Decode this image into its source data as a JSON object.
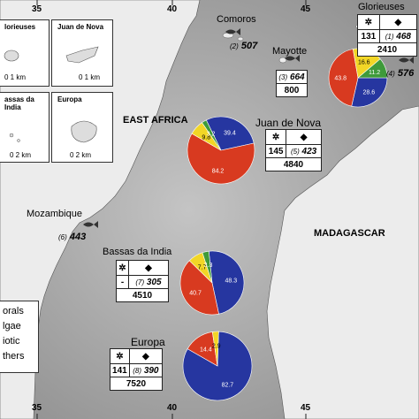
{
  "axis": {
    "top": [
      "35",
      "40",
      "45"
    ],
    "bottom": [
      "35",
      "40",
      "45"
    ]
  },
  "regions": {
    "east_africa": "EAST AFRICA",
    "madagascar": "MADAGASCAR"
  },
  "insets": [
    {
      "title": "lorieuses",
      "scale": "0   1 km"
    },
    {
      "title": "Juan de Nova",
      "scale": "0   1 km"
    },
    {
      "title": "assas da India",
      "scale": "0   2 km"
    },
    {
      "title": "Europa",
      "scale": "0   2 km"
    }
  ],
  "legend": [
    "orals",
    "lgae",
    "iotic",
    "thers"
  ],
  "sites": {
    "comoros": {
      "name": "Comoros",
      "species": "(2)",
      "count": "507"
    },
    "mayotte": {
      "name": "Mayotte",
      "species": "(3)",
      "count": "664",
      "area": "800"
    },
    "glorieuses": {
      "name": "Glorieuses",
      "left": "131",
      "species": "(1)",
      "count": "468",
      "area": "2410",
      "side_species": "(4)",
      "side_count": "576"
    },
    "juan_de_nova": {
      "name": "Juan de Nova",
      "left": "145",
      "species": "(5)",
      "count": "423",
      "area": "4840"
    },
    "mozambique": {
      "name": "Mozambique",
      "species": "(6)",
      "count": "443"
    },
    "bassas": {
      "name": "Bassas da India",
      "left": "-",
      "species": "(7)",
      "count": "305",
      "area": "4510"
    },
    "europa": {
      "name": "Europa",
      "left": "141",
      "species": "(8)",
      "count": "390",
      "area": "7520"
    }
  },
  "colors": {
    "corals": "#2636a0",
    "algae": "#d83a20",
    "abiotic": "#f2d626",
    "others": "#3e9a3a",
    "sea": "#a4a4a4",
    "land": "#ececec"
  },
  "chart_data": [
    {
      "type": "pie",
      "site": "Glorieuses",
      "values": [
        28.6,
        43.8,
        16.6,
        11.2
      ],
      "labels": [
        "28.6",
        "43.8",
        "16.6",
        "11.2"
      ]
    },
    {
      "type": "pie",
      "site": "Juan de Nova",
      "values": [
        39.4,
        84.2,
        9.8,
        3.2
      ],
      "labels": [
        "39.4",
        "84.2",
        "9.8",
        "3.2"
      ]
    },
    {
      "type": "pie",
      "site": "Bassas da India",
      "values": [
        48.3,
        40.7,
        7.7,
        3.3
      ],
      "labels": [
        "48.3",
        "40.7",
        "7.7",
        "3.3"
      ]
    },
    {
      "type": "pie",
      "site": "Europa",
      "values": [
        82.7,
        14.4,
        2.9,
        0
      ],
      "labels": [
        "82.7",
        "14.4",
        "2.9",
        ""
      ]
    }
  ]
}
